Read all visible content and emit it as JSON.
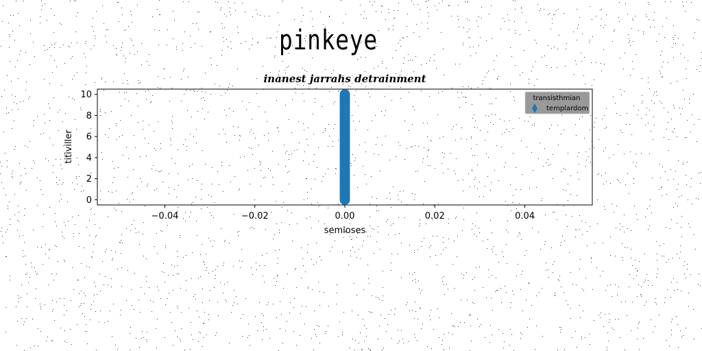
{
  "figure": {
    "suptitle": "pinkeye"
  },
  "chart_data": {
    "type": "scatter",
    "title": "inanest jarrahs detrainment",
    "xlabel": "semioses",
    "ylabel": "titiviller",
    "xlim": [
      -0.055,
      0.055
    ],
    "ylim": [
      -0.5,
      10.5
    ],
    "xticks": [
      -0.04,
      -0.02,
      0.0,
      0.02,
      0.04
    ],
    "xtick_labels": [
      "−0.04",
      "−0.02",
      "0.00",
      "0.02",
      "0.04"
    ],
    "yticks": [
      0,
      2,
      4,
      6,
      8,
      10
    ],
    "ytick_labels": [
      "0",
      "2",
      "4",
      "6",
      "8",
      "10"
    ],
    "grid": false,
    "legend": {
      "title": "transisthmian",
      "placement": "upper right",
      "background": "#999999",
      "entries": [
        {
          "label": "templardom",
          "marker": "diamond",
          "color": "#1f77b4"
        }
      ]
    },
    "series": [
      {
        "name": "templardom",
        "marker": "o",
        "color": "#1f77b4",
        "points": [
          [
            0,
            0.0
          ],
          [
            0,
            0.25
          ],
          [
            0,
            0.5
          ],
          [
            0,
            0.75
          ],
          [
            0,
            1.0
          ],
          [
            0,
            1.25
          ],
          [
            0,
            1.5
          ],
          [
            0,
            1.75
          ],
          [
            0,
            2.0
          ],
          [
            0,
            2.25
          ],
          [
            0,
            2.5
          ],
          [
            0,
            2.75
          ],
          [
            0,
            3.0
          ],
          [
            0,
            3.25
          ],
          [
            0,
            3.5
          ],
          [
            0,
            3.75
          ],
          [
            0,
            4.0
          ],
          [
            0,
            4.25
          ],
          [
            0,
            4.5
          ],
          [
            0,
            4.75
          ],
          [
            0,
            5.0
          ],
          [
            0,
            5.25
          ],
          [
            0,
            5.5
          ],
          [
            0,
            5.75
          ],
          [
            0,
            6.0
          ],
          [
            0,
            6.25
          ],
          [
            0,
            6.5
          ],
          [
            0,
            6.75
          ],
          [
            0,
            7.0
          ],
          [
            0,
            7.25
          ],
          [
            0,
            7.5
          ],
          [
            0,
            7.75
          ],
          [
            0,
            8.0
          ],
          [
            0,
            8.25
          ],
          [
            0,
            8.5
          ],
          [
            0,
            8.75
          ],
          [
            0,
            9.0
          ],
          [
            0,
            9.25
          ],
          [
            0,
            9.5
          ],
          [
            0,
            9.75
          ],
          [
            0,
            10.0
          ]
        ]
      }
    ]
  }
}
